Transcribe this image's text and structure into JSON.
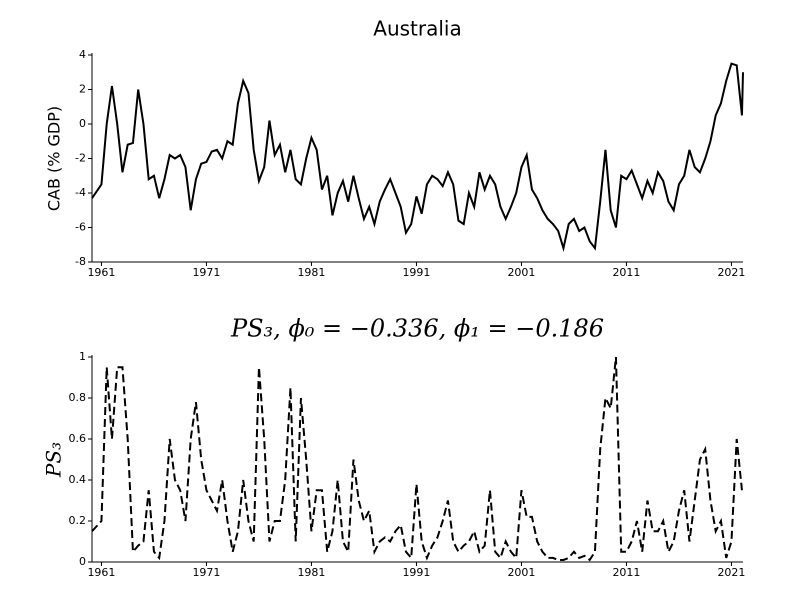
{
  "chart_data": [
    {
      "type": "line",
      "title": "Australia",
      "y_label": "CAB (% GDP)",
      "x": [
        1960.1,
        1961,
        1961.5,
        1962,
        1962.5,
        1963,
        1963.5,
        1964,
        1964.5,
        1965,
        1965.5,
        1966,
        1966.5,
        1967,
        1967.5,
        1968,
        1968.5,
        1969,
        1969.5,
        1970,
        1970.5,
        1971,
        1971.5,
        1972,
        1972.5,
        1973,
        1973.5,
        1974,
        1974.5,
        1975,
        1975.5,
        1976,
        1976.5,
        1977,
        1977.5,
        1978,
        1978.5,
        1979,
        1979.5,
        1980,
        1980.5,
        1981,
        1981.5,
        1982,
        1982.5,
        1983,
        1983.5,
        1984,
        1984.5,
        1985,
        1985.5,
        1986,
        1986.5,
        1987,
        1987.5,
        1988,
        1988.5,
        1989,
        1989.5,
        1990,
        1990.5,
        1991,
        1991.5,
        1992,
        1992.5,
        1993,
        1993.5,
        1994,
        1994.5,
        1995,
        1995.5,
        1996,
        1996.5,
        1997,
        1997.5,
        1998,
        1998.5,
        1999,
        1999.5,
        2000,
        2000.5,
        2001,
        2001.5,
        2002,
        2002.5,
        2003,
        2003.5,
        2004,
        2004.5,
        2005,
        2005.5,
        2006,
        2006.5,
        2007,
        2007.5,
        2008,
        2008.5,
        2009,
        2009.5,
        2010,
        2010.5,
        2011,
        2011.5,
        2012,
        2012.5,
        2013,
        2013.5,
        2014,
        2014.5,
        2015,
        2015.5,
        2016,
        2016.5,
        2017,
        2017.5,
        2018,
        2018.5,
        2019,
        2019.5,
        2020,
        2020.5,
        2021,
        2021.5,
        2022,
        2022.1
      ],
      "series": [
        {
          "color": "#000000",
          "dash": false,
          "values": [
            -4.3,
            -3.5,
            0,
            2.2,
            0,
            -2.8,
            -1.2,
            -1.1,
            2.0,
            0,
            -3.2,
            -3.0,
            -4.3,
            -3.2,
            -1.8,
            -2.0,
            -1.8,
            -2.5,
            -5.0,
            -3.2,
            -2.3,
            -2.2,
            -1.6,
            -1.5,
            -2.0,
            -1.0,
            -1.2,
            1.2,
            2.5,
            1.8,
            -1.5,
            -3.3,
            -2.5,
            0.2,
            -1.8,
            -1.2,
            -2.8,
            -1.5,
            -3.2,
            -3.5,
            -2.0,
            -0.8,
            -1.5,
            -3.8,
            -3.0,
            -5.3,
            -4.0,
            -3.3,
            -4.5,
            -3.0,
            -4.3,
            -5.5,
            -4.8,
            -5.8,
            -4.5,
            -3.8,
            -3.2,
            -4.0,
            -4.8,
            -6.3,
            -5.8,
            -4.2,
            -5.2,
            -3.5,
            -3.0,
            -3.2,
            -3.6,
            -2.8,
            -3.5,
            -5.6,
            -5.8,
            -4.0,
            -4.8,
            -2.8,
            -3.8,
            -3.0,
            -3.5,
            -4.8,
            -5.5,
            -4.8,
            -4.0,
            -2.5,
            -1.8,
            -3.8,
            -4.3,
            -5.0,
            -5.5,
            -5.8,
            -6.2,
            -7.2,
            -5.8,
            -5.5,
            -6.2,
            -6.0,
            -6.8,
            -7.2,
            -4.5,
            -1.5,
            -5.0,
            -6.0,
            -3.0,
            -3.2,
            -2.7,
            -3.5,
            -4.3,
            -3.3,
            -4.0,
            -2.8,
            -3.3,
            -4.5,
            -5.0,
            -3.5,
            -3.0,
            -1.5,
            -2.5,
            -2.8,
            -2.0,
            -1.0,
            0.5,
            1.2,
            2.5,
            3.5,
            3.4,
            0.5,
            3.0
          ]
        }
      ],
      "xlim": [
        1960.1,
        2022.1
      ],
      "xticks": [
        1961,
        1971,
        1981,
        1991,
        2001,
        2011,
        2021
      ],
      "ylim": [
        -8,
        4
      ],
      "yticks": [
        -8,
        -6,
        -4,
        -2,
        0,
        2,
        4
      ]
    },
    {
      "type": "line",
      "title": "PS₃, ϕ₀ = −0.336, ϕ₁ = −0.186",
      "y_label": "PS₃",
      "x": [
        1960.1,
        1961,
        1961.5,
        1962,
        1962.5,
        1963,
        1963.5,
        1964,
        1964.5,
        1965,
        1965.5,
        1966,
        1966.5,
        1967,
        1967.5,
        1968,
        1968.5,
        1969,
        1969.5,
        1970,
        1970.5,
        1971,
        1971.5,
        1972,
        1972.5,
        1973,
        1973.5,
        1974,
        1974.5,
        1975,
        1975.5,
        1976,
        1976.5,
        1977,
        1977.5,
        1978,
        1978.5,
        1979,
        1979.5,
        1980,
        1980.5,
        1981,
        1981.5,
        1982,
        1982.5,
        1983,
        1983.5,
        1984,
        1984.5,
        1985,
        1985.5,
        1986,
        1986.5,
        1987,
        1987.5,
        1988,
        1988.5,
        1989,
        1989.5,
        1990,
        1990.5,
        1991,
        1991.5,
        1992,
        1992.5,
        1993,
        1993.5,
        1994,
        1994.5,
        1995,
        1995.5,
        1996,
        1996.5,
        1997,
        1997.5,
        1998,
        1998.5,
        1999,
        1999.5,
        2000,
        2000.5,
        2001,
        2001.5,
        2002,
        2002.5,
        2003,
        2003.5,
        2004,
        2004.5,
        2005,
        2005.5,
        2006,
        2006.5,
        2007,
        2007.5,
        2008,
        2008.5,
        2009,
        2009.5,
        2010,
        2010.5,
        2011,
        2011.5,
        2012,
        2012.5,
        2013,
        2013.5,
        2014,
        2014.5,
        2015,
        2015.5,
        2016,
        2016.5,
        2017,
        2017.5,
        2018,
        2018.5,
        2019,
        2019.5,
        2020,
        2020.5,
        2021,
        2021.5,
        2022
      ],
      "series": [
        {
          "color": "#000000",
          "dash": true,
          "values": [
            0.15,
            0.2,
            0.95,
            0.6,
            0.95,
            0.95,
            0.6,
            0.05,
            0.08,
            0.1,
            0.35,
            0.05,
            0.02,
            0.2,
            0.6,
            0.4,
            0.35,
            0.2,
            0.6,
            0.78,
            0.5,
            0.35,
            0.3,
            0.25,
            0.4,
            0.2,
            0.05,
            0.15,
            0.4,
            0.2,
            0.1,
            0.95,
            0.6,
            0.1,
            0.2,
            0.2,
            0.4,
            0.85,
            0.1,
            0.8,
            0.5,
            0.15,
            0.35,
            0.35,
            0.05,
            0.15,
            0.4,
            0.1,
            0.05,
            0.5,
            0.3,
            0.2,
            0.25,
            0.05,
            0.1,
            0.12,
            0.1,
            0.15,
            0.18,
            0.05,
            0.02,
            0.38,
            0.1,
            0.02,
            0.08,
            0.12,
            0.2,
            0.3,
            0.1,
            0.05,
            0.08,
            0.1,
            0.15,
            0.05,
            0.08,
            0.35,
            0.05,
            0.02,
            0.1,
            0.05,
            0.02,
            0.35,
            0.22,
            0.22,
            0.1,
            0.05,
            0.02,
            0.02,
            0.01,
            0.01,
            0.02,
            0.05,
            0.02,
            0.03,
            0.01,
            0.05,
            0.55,
            0.8,
            0.75,
            1.0,
            0.05,
            0.05,
            0.1,
            0.2,
            0.05,
            0.3,
            0.15,
            0.15,
            0.2,
            0.05,
            0.1,
            0.25,
            0.35,
            0.1,
            0.3,
            0.5,
            0.55,
            0.3,
            0.15,
            0.2,
            0.02,
            0.1,
            0.6,
            0.35
          ]
        }
      ],
      "xlim": [
        1960.1,
        2022.1
      ],
      "xticks": [
        1961,
        1971,
        1981,
        1991,
        2001,
        2011,
        2021
      ],
      "ylim": [
        0,
        1
      ],
      "yticks": [
        0,
        0.2,
        0.4,
        0.6,
        0.8,
        1
      ]
    }
  ]
}
